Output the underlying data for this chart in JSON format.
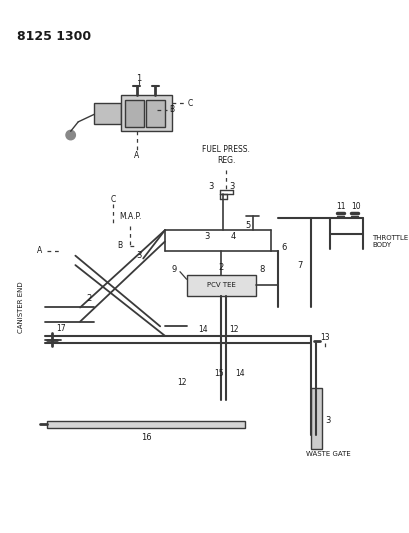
{
  "title": "8125 1300",
  "bg_color": "#ffffff",
  "line_color": "#3a3a3a",
  "text_color": "#1a1a1a",
  "fig_width": 4.1,
  "fig_height": 5.33,
  "dpi": 100,
  "labels": {
    "title": "8125 1300",
    "fuel_press_reg": "FUEL PRESS.\nREG.",
    "throttle_body": "THROTTLE\nBODY",
    "pcv_tee": "PCV TEE",
    "map": "M.A.P.",
    "canister_end": "CANISTER END",
    "waste_gate": "WASTE GATE"
  }
}
